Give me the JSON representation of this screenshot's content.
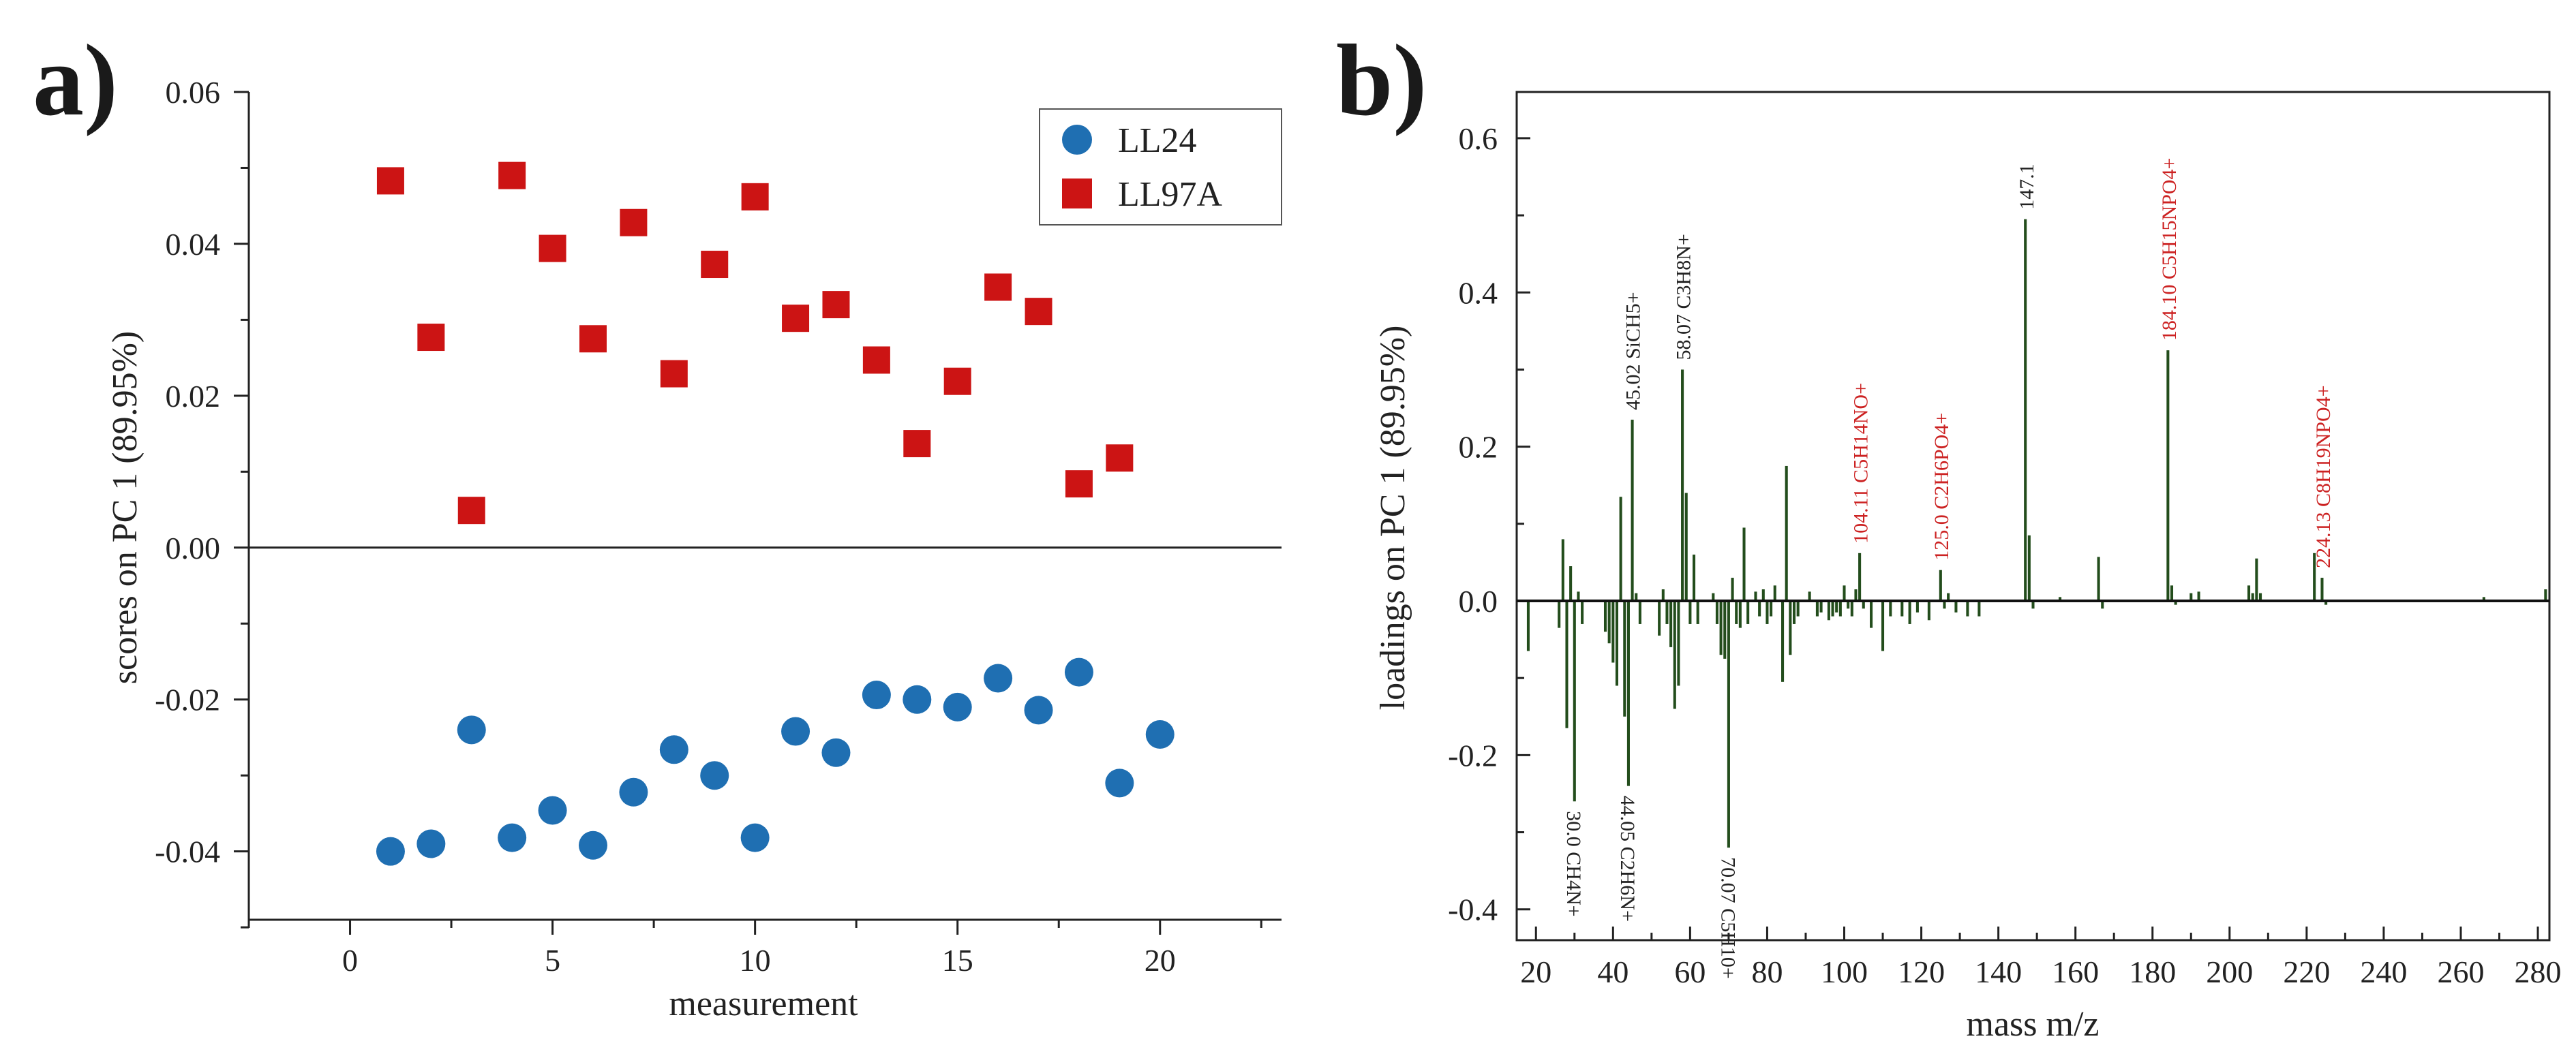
{
  "chart_data": [
    {
      "panel_label": "a)",
      "type": "scatter",
      "xlabel": "measurement",
      "ylabel": "scores on PC 1 (89.95%)",
      "xlim": [
        -2.5,
        23
      ],
      "ylim": [
        -0.049,
        0.06
      ],
      "xticks": [
        0,
        5,
        10,
        15,
        20
      ],
      "xtick_labels": [
        "0",
        "5",
        "10",
        "15",
        "20"
      ],
      "yticks": [
        -0.04,
        -0.02,
        0.0,
        0.02,
        0.04,
        0.06
      ],
      "ytick_labels": [
        "-0.04",
        "-0.02",
        "0.00",
        "0.02",
        "0.04",
        "0.06"
      ],
      "zero_line": 0,
      "legend_position": "top-right",
      "series": [
        {
          "name": "LL24",
          "marker": "circle",
          "color": "#1f6fb2",
          "x": [
            1,
            2,
            3,
            4,
            5,
            6,
            7,
            8,
            9,
            10,
            11,
            12,
            13,
            14,
            15,
            16,
            17,
            18,
            19,
            20
          ],
          "y": [
            -0.04,
            -0.039,
            -0.024,
            -0.0382,
            -0.0346,
            -0.0392,
            -0.0322,
            -0.0266,
            -0.03,
            -0.0382,
            -0.0242,
            -0.027,
            -0.0194,
            -0.02,
            -0.021,
            -0.0172,
            -0.0214,
            -0.0164,
            -0.031,
            -0.0246
          ]
        },
        {
          "name": "LL97A",
          "marker": "square",
          "color": "#cc1414",
          "x": [
            1,
            2,
            3,
            4,
            5,
            6,
            7,
            8,
            9,
            10,
            11,
            12,
            13,
            14,
            15,
            16,
            17,
            18,
            19
          ],
          "y": [
            0.0483,
            0.0277,
            0.0049,
            0.049,
            0.0394,
            0.0275,
            0.0428,
            0.0229,
            0.0373,
            0.0462,
            0.0302,
            0.032,
            0.0247,
            0.0137,
            0.0219,
            0.0343,
            0.0311,
            0.0084,
            0.0118
          ]
        }
      ]
    },
    {
      "panel_label": "b)",
      "type": "bar",
      "xlabel": "mass m/z",
      "ylabel": "loadings on PC 1 (89.95%)",
      "xlim": [
        15,
        283
      ],
      "ylim": [
        -0.44,
        0.66
      ],
      "xticks": [
        20,
        40,
        60,
        80,
        100,
        120,
        140,
        160,
        180,
        200,
        220,
        240,
        260,
        280
      ],
      "xtick_labels": [
        "20",
        "40",
        "60",
        "80",
        "100",
        "120",
        "140",
        "160",
        "180",
        "200",
        "220",
        "240",
        "260",
        "280"
      ],
      "yticks": [
        -0.4,
        -0.2,
        0.0,
        0.2,
        0.4,
        0.6
      ],
      "ytick_labels": [
        "-0.4",
        "-0.2",
        "0.0",
        "0.2",
        "0.4",
        "0.6"
      ],
      "bar_color": "#234d1c",
      "x": [
        18,
        26,
        27,
        28,
        29,
        30,
        31,
        32,
        38,
        39,
        40,
        41,
        42,
        43,
        44,
        45,
        46,
        47,
        52,
        53,
        54,
        55,
        56,
        57,
        58,
        59,
        60,
        61,
        62,
        66,
        67,
        68,
        69,
        70,
        71,
        72,
        73,
        74,
        75,
        77,
        78,
        79,
        80,
        81,
        82,
        84,
        85,
        86,
        87,
        88,
        91,
        93,
        94,
        96,
        97,
        98,
        99,
        100,
        101,
        102,
        103,
        104,
        105,
        107,
        110,
        112,
        115,
        117,
        119,
        122,
        125,
        126,
        127,
        129,
        132,
        135,
        147,
        148,
        149,
        156,
        166,
        167,
        184,
        185,
        186,
        190,
        192,
        205,
        206,
        207,
        208,
        222,
        224,
        225,
        266,
        282
      ],
      "values": [
        -0.065,
        -0.035,
        0.08,
        -0.165,
        0.045,
        -0.26,
        0.012,
        -0.03,
        -0.04,
        -0.055,
        -0.08,
        -0.11,
        0.135,
        -0.15,
        -0.24,
        0.235,
        0.01,
        -0.03,
        -0.045,
        0.015,
        -0.03,
        -0.06,
        -0.14,
        -0.11,
        0.3,
        0.14,
        -0.03,
        0.06,
        -0.03,
        0.01,
        -0.03,
        -0.07,
        -0.075,
        -0.32,
        0.03,
        -0.03,
        -0.035,
        0.095,
        -0.03,
        0.012,
        -0.02,
        0.015,
        -0.03,
        -0.02,
        0.02,
        -0.105,
        0.175,
        -0.07,
        -0.03,
        -0.02,
        0.012,
        -0.02,
        -0.015,
        -0.025,
        -0.02,
        -0.015,
        -0.02,
        0.02,
        -0.01,
        -0.02,
        0.015,
        0.062,
        -0.01,
        -0.035,
        -0.065,
        -0.02,
        -0.02,
        -0.03,
        -0.015,
        -0.025,
        0.04,
        -0.01,
        0.01,
        -0.015,
        -0.02,
        -0.02,
        0.495,
        0.085,
        -0.01,
        0.005,
        0.057,
        -0.01,
        0.325,
        0.02,
        -0.005,
        0.01,
        0.012,
        0.02,
        0.01,
        0.055,
        0.01,
        0.062,
        0.03,
        -0.005,
        0.005,
        0.015
      ],
      "annotations": [
        {
          "x": 30.0,
          "y": -0.26,
          "text": "30.0 CH4N+",
          "color": "#222222",
          "side": "below"
        },
        {
          "x": 44.05,
          "y": -0.24,
          "text": "44.05 C2H6N+",
          "color": "#222222",
          "side": "below"
        },
        {
          "x": 70.07,
          "y": -0.32,
          "text": "70.07 C5H10+",
          "color": "#222222",
          "side": "below"
        },
        {
          "x": 45.02,
          "y": 0.235,
          "text": "45.02 SiCH5+",
          "color": "#222222",
          "side": "above"
        },
        {
          "x": 58.07,
          "y": 0.3,
          "text": "58.07 C3H8N+",
          "color": "#222222",
          "side": "above"
        },
        {
          "x": 104.11,
          "y": 0.062,
          "text": "104.11 C5H14NO+",
          "color": "#cc2222",
          "side": "above"
        },
        {
          "x": 125.0,
          "y": 0.04,
          "text": "125.0 C2H6PO4+",
          "color": "#cc2222",
          "side": "above"
        },
        {
          "x": 147.1,
          "y": 0.495,
          "text": "147.1",
          "color": "#222222",
          "side": "above"
        },
        {
          "x": 184.1,
          "y": 0.325,
          "text": "184.10 C5H15NPO4+",
          "color": "#cc2222",
          "side": "above"
        },
        {
          "x": 224.13,
          "y": 0.03,
          "text": "224.13 C8H19NPO4+",
          "color": "#cc2222",
          "side": "above"
        }
      ]
    }
  ]
}
